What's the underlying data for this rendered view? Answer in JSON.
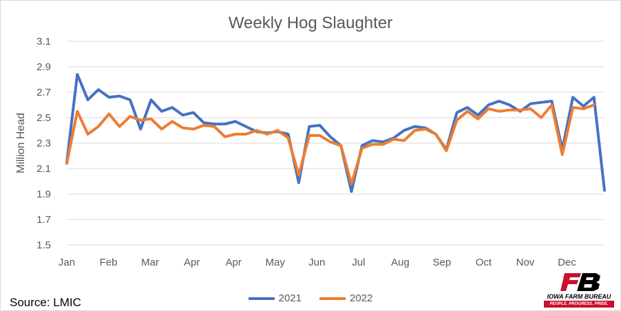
{
  "chart_data": {
    "type": "line",
    "title": "Weekly Hog Slaughter",
    "xlabel": "",
    "ylabel": "Million Head",
    "ylim": [
      1.5,
      3.1
    ],
    "yticks": [
      "1.5",
      "1.7",
      "1.9",
      "2.1",
      "2.3",
      "2.5",
      "2.7",
      "2.9",
      "3.1"
    ],
    "xtick_labels": [
      "Jan",
      "Feb",
      "Mar",
      "Apr",
      "Apr",
      "May",
      "Jun",
      "Jul",
      "Aug",
      "Sep",
      "Oct",
      "Nov",
      "Dec"
    ],
    "grid": true,
    "legend": "bottom",
    "series": [
      {
        "name": "2021",
        "color": "#4472c4",
        "values": [
          2.15,
          2.84,
          2.64,
          2.72,
          2.66,
          2.67,
          2.64,
          2.41,
          2.64,
          2.55,
          2.58,
          2.52,
          2.54,
          2.46,
          2.45,
          2.45,
          2.47,
          2.43,
          2.39,
          2.38,
          2.39,
          2.37,
          1.99,
          2.43,
          2.44,
          2.35,
          2.28,
          1.92,
          2.28,
          2.32,
          2.31,
          2.34,
          2.4,
          2.43,
          2.42,
          2.37,
          2.25,
          2.54,
          2.58,
          2.52,
          2.6,
          2.63,
          2.6,
          2.55,
          2.61,
          2.62,
          2.63,
          2.25,
          2.66,
          2.59,
          2.66,
          1.93
        ]
      },
      {
        "name": "2022",
        "color": "#ed7d31",
        "values": [
          2.14,
          2.55,
          2.37,
          2.43,
          2.53,
          2.43,
          2.51,
          2.48,
          2.49,
          2.41,
          2.47,
          2.42,
          2.41,
          2.44,
          2.43,
          2.35,
          2.37,
          2.37,
          2.4,
          2.37,
          2.4,
          2.34,
          2.05,
          2.36,
          2.36,
          2.31,
          2.28,
          1.98,
          2.26,
          2.29,
          2.29,
          2.33,
          2.32,
          2.4,
          2.41,
          2.37,
          2.24,
          2.48,
          2.55,
          2.49,
          2.57,
          2.55,
          2.56,
          2.56,
          2.57,
          2.5,
          2.6,
          2.21,
          2.58,
          2.57,
          2.6
        ]
      }
    ]
  },
  "source_text": "Source: LMIC",
  "logo": {
    "mark": "FB",
    "name": "IOWA FARM BUREAU",
    "tagline": "PEOPLE. PROGRESS. PRIDE.",
    "color": "#c8102e"
  }
}
